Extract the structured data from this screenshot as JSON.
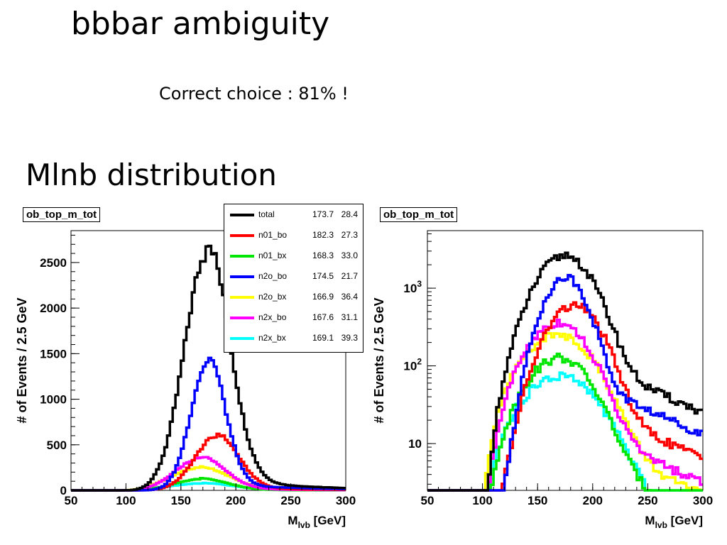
{
  "slide": {
    "title": "bbbar ambiguity",
    "subtitle": "Correct choice : 81% !",
    "section": "Mlnb distribution"
  },
  "legend": {
    "rows": [
      {
        "name": "total",
        "mean": "173.7",
        "rms": "28.4",
        "color": "#000000"
      },
      {
        "name": "n01_bo",
        "mean": "182.3",
        "rms": "27.3",
        "color": "#ff0000"
      },
      {
        "name": "n01_bx",
        "mean": "168.3",
        "rms": "33.0",
        "color": "#00e600"
      },
      {
        "name": "n2o_bo",
        "mean": "174.5",
        "rms": "21.7",
        "color": "#0000ff"
      },
      {
        "name": "n2o_bx",
        "mean": "166.9",
        "rms": "36.4",
        "color": "#ffff00"
      },
      {
        "name": "n2x_bo",
        "mean": "167.6",
        "rms": "31.1",
        "color": "#ff00ff"
      },
      {
        "name": "n2x_bx",
        "mean": "169.1",
        "rms": "39.3",
        "color": "#00ffff"
      }
    ]
  },
  "chart_data": [
    {
      "type": "line",
      "title": "ob_top_m_tot",
      "xlabel_main": "M",
      "xlabel_sub": "lvb",
      "xlabel_unit": " [GeV]",
      "ylabel": "# of Events / 2.5 GeV",
      "xlim": [
        50,
        300
      ],
      "ylim": [
        0,
        2850
      ],
      "yscale": "linear",
      "xticks": [
        "50",
        "100",
        "150",
        "200",
        "250",
        "300"
      ],
      "yticks": [
        "0",
        "500",
        "1000",
        "1500",
        "2000",
        "2500"
      ],
      "grid": false,
      "legend_position": "top-right",
      "series": [
        {
          "name": "total",
          "color": "#000000",
          "mean": 173.7,
          "rms": 28.4,
          "peak": 2740
        },
        {
          "name": "n01_bo",
          "color": "#ff0000",
          "mean": 182.3,
          "rms": 27.3,
          "peak": 620
        },
        {
          "name": "n01_bx",
          "color": "#00e600",
          "mean": 168.3,
          "rms": 33.0,
          "peak": 130
        },
        {
          "name": "n2o_bo",
          "color": "#0000ff",
          "mean": 174.5,
          "rms": 21.7,
          "peak": 1470
        },
        {
          "name": "n2o_bx",
          "color": "#ffff00",
          "mean": 166.9,
          "rms": 36.4,
          "peak": 260
        },
        {
          "name": "n2x_bo",
          "color": "#ff00ff",
          "mean": 167.6,
          "rms": 31.1,
          "peak": 370
        },
        {
          "name": "n2x_bx",
          "color": "#00ffff",
          "mean": 169.1,
          "rms": 39.3,
          "peak": 80
        }
      ]
    },
    {
      "type": "line",
      "title": "ob_top_m_tot",
      "xlabel_main": "M",
      "xlabel_sub": "lvb",
      "xlabel_unit": " [GeV]",
      "ylabel": "# of Events / 2.5 GeV",
      "xlim": [
        50,
        300
      ],
      "ylim": [
        2.5,
        5500
      ],
      "yscale": "log",
      "xticks": [
        "50",
        "100",
        "150",
        "200",
        "250",
        "300"
      ],
      "yticks": [
        {
          "value": 10,
          "label": "10",
          "sup": ""
        },
        {
          "value": 100,
          "label": "10",
          "sup": "2"
        },
        {
          "value": 1000,
          "label": "10",
          "sup": "3"
        }
      ],
      "grid": false,
      "series": [
        {
          "name": "total",
          "color": "#000000",
          "mean": 173.7,
          "rms": 28.4,
          "peak": 2700
        },
        {
          "name": "n01_bo",
          "color": "#ff0000",
          "mean": 182.3,
          "rms": 27.3,
          "peak": 620
        },
        {
          "name": "n01_bx",
          "color": "#00e600",
          "mean": 168.3,
          "rms": 33.0,
          "peak": 130
        },
        {
          "name": "n2o_bo",
          "color": "#0000ff",
          "mean": 174.5,
          "rms": 21.7,
          "peak": 1400
        },
        {
          "name": "n2o_bx",
          "color": "#ffff00",
          "mean": 166.9,
          "rms": 36.4,
          "peak": 260
        },
        {
          "name": "n2x_bo",
          "color": "#ff00ff",
          "mean": 167.6,
          "rms": 31.1,
          "peak": 370
        },
        {
          "name": "n2x_bx",
          "color": "#00ffff",
          "mean": 169.1,
          "rms": 39.3,
          "peak": 75
        }
      ]
    }
  ]
}
